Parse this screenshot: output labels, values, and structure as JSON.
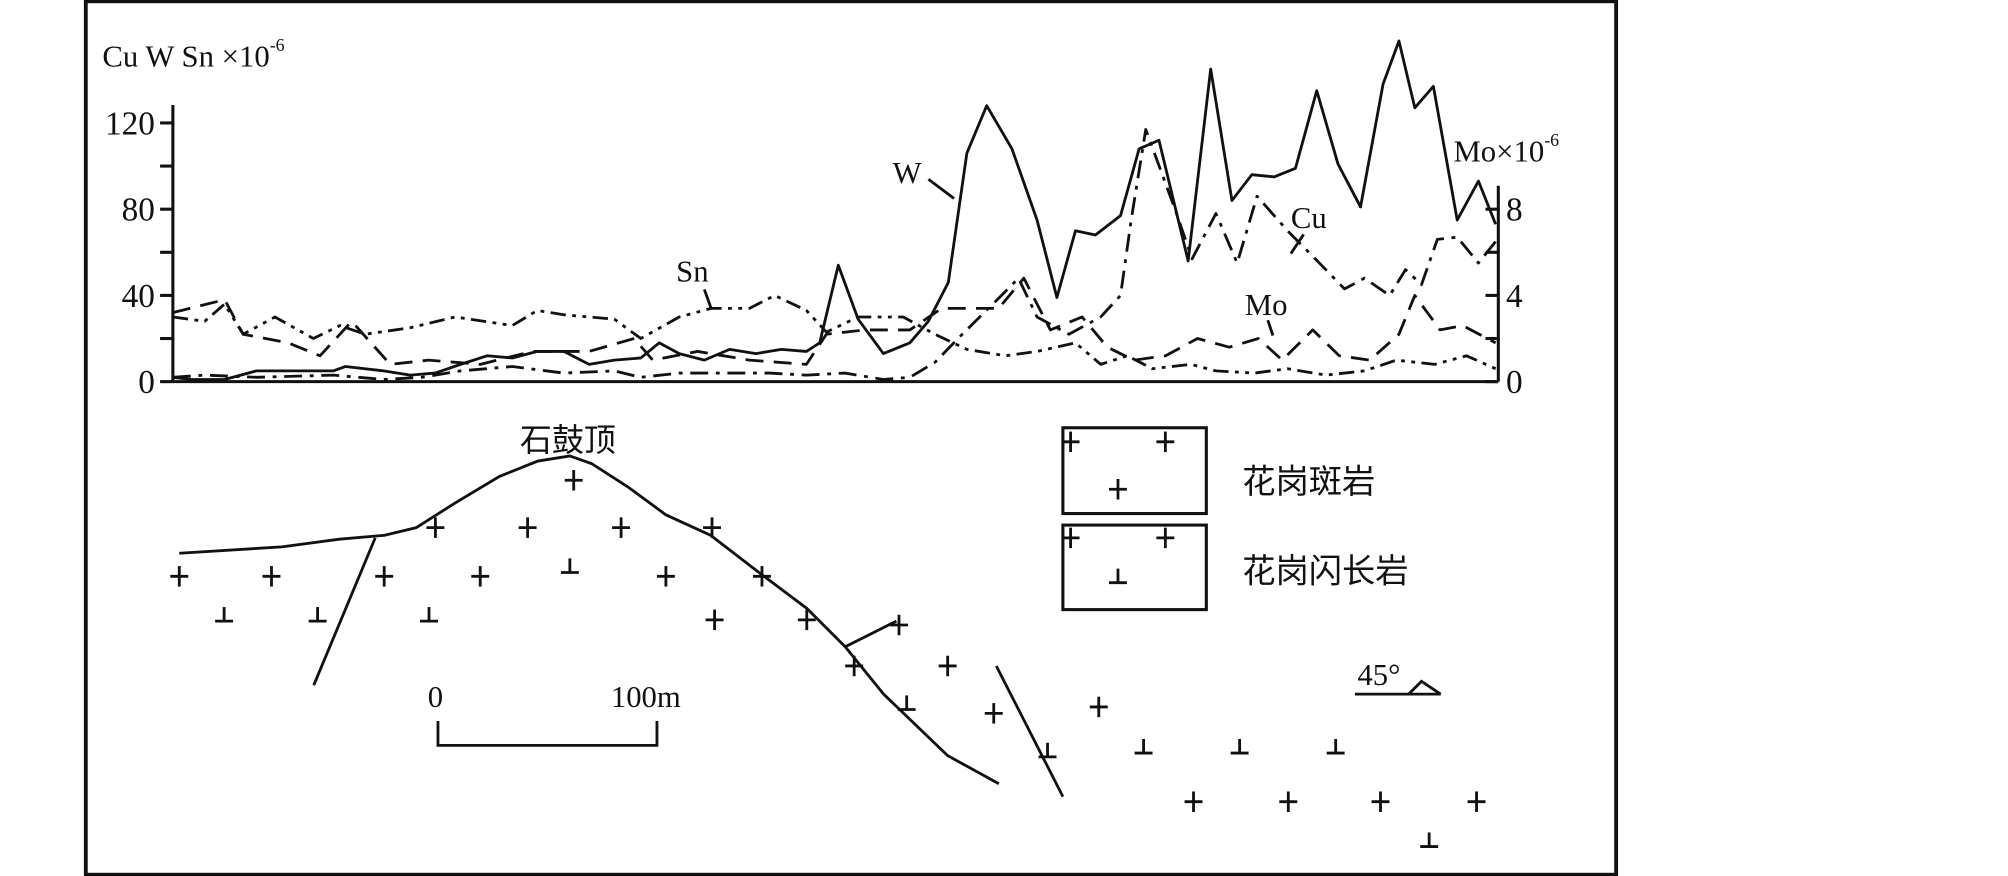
{
  "chart_data": {
    "type": "line",
    "left_axis": {
      "label": "Cu W Sn ×10",
      "label_exp": "-6",
      "ylim": [
        0,
        120
      ],
      "ticks": [
        "0",
        "40",
        "80",
        "120"
      ]
    },
    "right_axis": {
      "label": "Mo×10",
      "label_exp": "-6",
      "ylim": [
        0,
        8
      ],
      "ticks": [
        "0",
        "4",
        "8"
      ]
    },
    "xlabel": "",
    "grid": false,
    "series": [
      {
        "name": "W",
        "axis": "left",
        "style": "solid",
        "points": [
          [
            0,
            2
          ],
          [
            1.4,
            1
          ],
          [
            3.9,
            1
          ],
          [
            6.3,
            5
          ],
          [
            8.7,
            5
          ],
          [
            12.1,
            5
          ],
          [
            13,
            7
          ],
          [
            15.9,
            5
          ],
          [
            17.9,
            3
          ],
          [
            19.8,
            4
          ],
          [
            21.7,
            8
          ],
          [
            23.7,
            12
          ],
          [
            25.6,
            11
          ],
          [
            27.5,
            14
          ],
          [
            29.5,
            14
          ],
          [
            31.4,
            8
          ],
          [
            33.3,
            10
          ],
          [
            35.3,
            11
          ],
          [
            36.7,
            18
          ],
          [
            38.2,
            13
          ],
          [
            40.1,
            10
          ],
          [
            42,
            15
          ],
          [
            44,
            13
          ],
          [
            45.9,
            15
          ],
          [
            47.8,
            14
          ],
          [
            48.8,
            18
          ],
          [
            50.2,
            54
          ],
          [
            51.7,
            29
          ],
          [
            53.6,
            13
          ],
          [
            55.6,
            18
          ],
          [
            57,
            28
          ],
          [
            58.5,
            46
          ],
          [
            59.9,
            106
          ],
          [
            61.4,
            128
          ],
          [
            63.3,
            108
          ],
          [
            65.2,
            75
          ],
          [
            66.7,
            39
          ],
          [
            68.1,
            70
          ],
          [
            69.6,
            68
          ],
          [
            71.5,
            77
          ],
          [
            72.9,
            108
          ],
          [
            74.4,
            112
          ],
          [
            76.6,
            56
          ],
          [
            78.3,
            145
          ],
          [
            79.9,
            84
          ],
          [
            81.4,
            96
          ],
          [
            83.1,
            95
          ],
          [
            84.7,
            99
          ],
          [
            86.3,
            135
          ],
          [
            87.9,
            101
          ],
          [
            89.6,
            81
          ],
          [
            91.3,
            138
          ],
          [
            92.5,
            158
          ],
          [
            93.7,
            127
          ],
          [
            95.1,
            137
          ],
          [
            96.9,
            75
          ],
          [
            98.5,
            93
          ],
          [
            99.8,
            73
          ]
        ]
      },
      {
        "name": "Cu",
        "axis": "left",
        "style": "dash-dot",
        "points": [
          [
            0,
            2
          ],
          [
            2.4,
            3
          ],
          [
            6.3,
            2
          ],
          [
            12.1,
            3
          ],
          [
            15.9,
            1
          ],
          [
            18.8,
            2
          ],
          [
            21.7,
            5
          ],
          [
            25.6,
            7
          ],
          [
            29.5,
            4
          ],
          [
            33.3,
            5
          ],
          [
            35.3,
            2
          ],
          [
            38.2,
            4
          ],
          [
            41.1,
            4
          ],
          [
            45,
            4
          ],
          [
            47.8,
            3
          ],
          [
            50.7,
            4
          ],
          [
            53.6,
            1
          ],
          [
            55.6,
            2
          ],
          [
            57.5,
            9
          ],
          [
            59.4,
            21
          ],
          [
            62.2,
            38
          ],
          [
            63.8,
            48
          ],
          [
            65.2,
            30
          ],
          [
            67.6,
            22
          ],
          [
            70,
            30
          ],
          [
            71.5,
            40
          ],
          [
            72.3,
            75
          ],
          [
            73.4,
            117
          ],
          [
            75.6,
            80
          ],
          [
            76.9,
            57
          ],
          [
            78.7,
            78
          ],
          [
            80.3,
            55
          ],
          [
            81.8,
            86
          ],
          [
            84.1,
            70
          ],
          [
            86.5,
            55
          ],
          [
            88.4,
            43
          ],
          [
            89.9,
            48
          ],
          [
            91.8,
            40
          ],
          [
            93,
            52
          ],
          [
            94.2,
            45
          ],
          [
            95.4,
            66
          ],
          [
            96.9,
            67
          ],
          [
            98.5,
            55
          ],
          [
            99.8,
            65
          ]
        ]
      },
      {
        "name": "Sn",
        "axis": "left",
        "style": "dash-dot-dot",
        "points": [
          [
            0,
            30
          ],
          [
            2.4,
            28
          ],
          [
            3.9,
            36
          ],
          [
            5.3,
            22
          ],
          [
            7.7,
            30
          ],
          [
            10.6,
            20
          ],
          [
            12.6,
            26
          ],
          [
            14.5,
            22
          ],
          [
            17.9,
            25
          ],
          [
            21.3,
            30
          ],
          [
            25.6,
            26
          ],
          [
            27.5,
            33
          ],
          [
            29.5,
            31
          ],
          [
            33.3,
            29
          ],
          [
            35.3,
            20
          ],
          [
            38.2,
            30
          ],
          [
            40.6,
            34
          ],
          [
            43.5,
            34
          ],
          [
            45.4,
            40
          ],
          [
            47.8,
            33
          ],
          [
            49.3,
            23
          ],
          [
            51.7,
            30
          ],
          [
            55.1,
            30
          ],
          [
            57.5,
            22
          ],
          [
            59.9,
            15
          ],
          [
            62.8,
            12
          ],
          [
            65.2,
            14
          ],
          [
            68.1,
            18
          ],
          [
            70,
            8
          ],
          [
            72,
            12
          ],
          [
            73.9,
            6
          ],
          [
            76.8,
            8
          ],
          [
            78.7,
            5
          ],
          [
            81.6,
            4
          ],
          [
            84.1,
            6
          ],
          [
            87,
            3
          ],
          [
            89.9,
            5
          ],
          [
            92.3,
            10
          ],
          [
            95.2,
            8
          ],
          [
            97.6,
            12
          ],
          [
            99.8,
            6
          ]
        ]
      },
      {
        "name": "Mo",
        "axis": "right",
        "style": "dashed",
        "points": [
          [
            0,
            3.2
          ],
          [
            3.9,
            3.8
          ],
          [
            5.3,
            2.2
          ],
          [
            8.7,
            1.8
          ],
          [
            11.1,
            1.2
          ],
          [
            13.5,
            2.8
          ],
          [
            16.4,
            0.8
          ],
          [
            19.3,
            1.0
          ],
          [
            23.2,
            0.8
          ],
          [
            27.1,
            1.4
          ],
          [
            31.4,
            1.4
          ],
          [
            34.8,
            2.0
          ],
          [
            36.2,
            1.0
          ],
          [
            39.6,
            1.4
          ],
          [
            43.5,
            1.0
          ],
          [
            47.8,
            0.8
          ],
          [
            49.3,
            2.2
          ],
          [
            52.2,
            2.4
          ],
          [
            55.6,
            2.4
          ],
          [
            58,
            3.4
          ],
          [
            62.3,
            3.4
          ],
          [
            64.2,
            4.8
          ],
          [
            66.2,
            2.4
          ],
          [
            68.6,
            3.0
          ],
          [
            70.5,
            1.6
          ],
          [
            72.5,
            1.0
          ],
          [
            74.9,
            1.2
          ],
          [
            77.3,
            2.0
          ],
          [
            79.7,
            1.6
          ],
          [
            81.9,
            2.0
          ],
          [
            83.7,
            1.0
          ],
          [
            86,
            2.4
          ],
          [
            88,
            1.2
          ],
          [
            90.3,
            1.0
          ],
          [
            92.5,
            2.2
          ],
          [
            93.7,
            4.0
          ],
          [
            95.6,
            2.4
          ],
          [
            97.3,
            2.6
          ],
          [
            99.8,
            1.8
          ]
        ]
      }
    ]
  },
  "section": {
    "peak_name": "石鼓顶",
    "scale_start": "0",
    "scale_end": "100m",
    "dip_label": "45°",
    "legend": [
      {
        "symbol": "plus",
        "label": "花岗斑岩"
      },
      {
        "symbol": "perp",
        "label": "花岗闪长岩"
      }
    ]
  }
}
